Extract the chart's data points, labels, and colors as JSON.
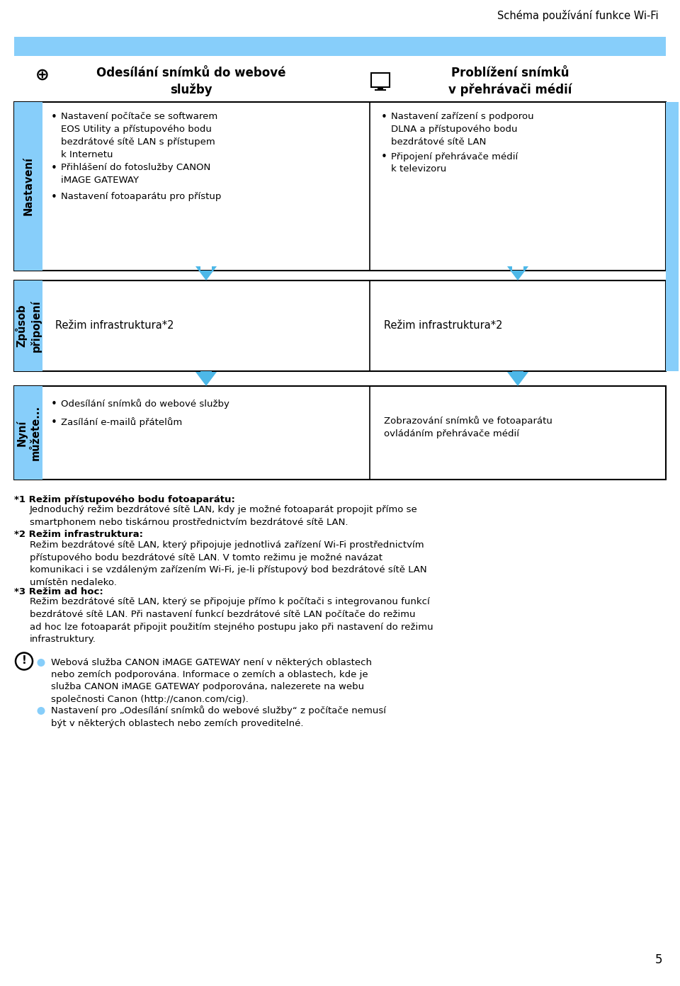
{
  "title": "Schéma používání funkce Wi-Fi",
  "page_number": "5",
  "top_bar_color": "#87CEFA",
  "side_bar_color": "#87CEFA",
  "arrow_color": "#4DB8E8",
  "border_color": "#000000",
  "bg_color": "#FFFFFF",
  "row1_label": "Nastavení",
  "row2_label": "Způsob\npřipojení",
  "row3_label": "Nyní\nmůžete...",
  "col1_h1": "Odesílání snímků do webové",
  "col1_h2": "služby",
  "col2_h1": "Problížení snímků",
  "col2_h2": "v přehrávači médií",
  "row1_col1_b1": "Nastavení počítače se softwarem\nEOS Utility a přístupového bodu\nbezdrátové sítě LAN s přístupem\nk Internetu",
  "row1_col1_b2": "Přihlášení do fotoslužby CANON\niMAGE GATEWAY",
  "row1_col1_b3": "Nastavení fotoaparátu pro přístup",
  "row1_col2_b1": "Nastavení zařízení s podporou\nDLNA a přístupového bodu\nbezdrátové sítě LAN",
  "row1_col2_b2": "Připojení přehrávače médií\nk televizoru",
  "row2_col1": "Režim infrastruktura*2",
  "row2_col2": "Režim infrastruktura*2",
  "row3_col1_b1": "Odesílání snímků do webové služby",
  "row3_col1_b2": "Zasílání e-mailů přátelům",
  "row3_col2": "Zobrazování snímků ve fotoaparátu\novládáním přehrávače médií",
  "fn1_bold": "*1 Režim přístupového bodu fotoaparátu:",
  "fn1_text": "Jednoduchý režim bezdrátové sítě LAN, kdy je možné fotoaparát propojit přímo se\nsmartphonem nebo tiskárnou prostřednictvím bezdrátové sítě LAN.",
  "fn2_bold": "*2 Režim infrastruktura:",
  "fn2_text": "Režim bezdrátové sítě LAN, který připojuje jednotlivá zařízení Wi-Fi prostřednictvím\npřístupového bodu bezdrátové sítě LAN. V tomto režimu je možné navázat\nkomunikaci i se vzdáleným zařízením Wi-Fi, je-li přístupový bod bezdrátové sítě LAN\numístěn nedaleko.",
  "fn3_bold": "*3 Režim ad hoc:",
  "fn3_text": "Režim bezdrátové sítě LAN, který se připojuje přímo k počítači s integrovanou funkcí\nbezdrátové sítě LAN. Při nastavení funkcí bezdrátové sítě LAN počítače do režimu\nad hoc lze fotoaparát připojit použitím stejného postupu jako při nastavení do režimu\ninfrastruktury.",
  "note1": "Webová služba CANON iMAGE GATEWAY není v některých oblastech\nnebo zemích podporována. Informace o zemích a oblastech, kde je\nslužba CANON iMAGE GATEWAY podporována, nalezerete na webu\nspolečnosti Canon (http://canon.com/cig).",
  "note2_p1": "Nastavení pro „Odesílání snímků do webové služby“ z počítače nemusí",
  "note2_p2": "být v některých oblastech nebo zemích proveditelné."
}
